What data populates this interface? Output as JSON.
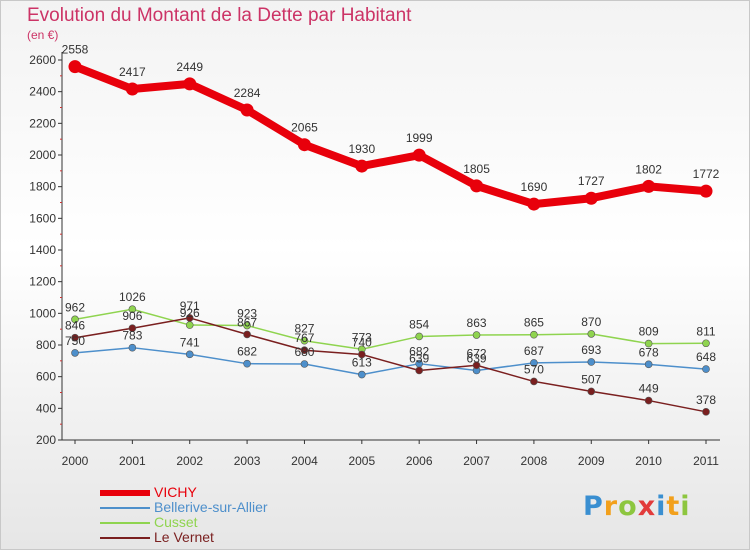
{
  "title": "Evolution du Montant de la Dette par Habitant",
  "unit": "(en €)",
  "logo": {
    "letters": [
      {
        "ch": "P",
        "color": "#3a8fd1"
      },
      {
        "ch": "r",
        "color": "#f2a01c"
      },
      {
        "ch": "o",
        "color": "#8dc63f"
      },
      {
        "ch": "x",
        "color": "#e23b3b"
      },
      {
        "ch": "i",
        "color": "#3a8fd1"
      },
      {
        "ch": "t",
        "color": "#f2a01c"
      },
      {
        "ch": "i",
        "color": "#8dc63f"
      }
    ]
  },
  "chart_data": {
    "type": "line",
    "title": "Evolution du Montant de la Dette par Habitant",
    "ylabel": "(en €)",
    "xlabel": "",
    "x": [
      "2000",
      "2001",
      "2002",
      "2003",
      "2004",
      "2005",
      "2006",
      "2007",
      "2008",
      "2009",
      "2010",
      "2011"
    ],
    "ylim": [
      200,
      2600
    ],
    "yticks": [
      200,
      400,
      600,
      800,
      1000,
      1200,
      1400,
      1600,
      1800,
      2000,
      2200,
      2400,
      2600
    ],
    "grid": false,
    "legend_position": "bottom-left",
    "series": [
      {
        "name": "VICHY",
        "color": "#e8000b",
        "values": [
          2558,
          2417,
          2449,
          2284,
          2065,
          1930,
          1999,
          1805,
          1690,
          1727,
          1802,
          1772
        ],
        "labels": [
          "2558",
          "2417",
          "2449",
          "2284",
          "2065",
          "1930",
          "1999",
          "1805",
          "1690",
          "1727",
          "1802",
          "1772"
        ]
      },
      {
        "name": "Bellerive-sur-Allier",
        "color": "#4d8fcb",
        "values": [
          750,
          783,
          741,
          682,
          680,
          613,
          682,
          639,
          687,
          693,
          678,
          648
        ],
        "labels": [
          "750",
          "783",
          "741",
          "682",
          "680",
          "613",
          "682",
          "639",
          "687",
          "693",
          "678",
          "648"
        ]
      },
      {
        "name": "Cusset",
        "color": "#8fd44f",
        "values": [
          962,
          1026,
          926,
          923,
          827,
          773,
          854,
          863,
          865,
          870,
          809,
          811
        ],
        "labels": [
          "962",
          "1026",
          "926",
          "923",
          "827",
          "773",
          "854",
          "863",
          "865",
          "870",
          "809",
          "811"
        ]
      },
      {
        "name": "Le Vernet",
        "color": "#7a1f1f",
        "values": [
          846,
          906,
          971,
          867,
          767,
          740,
          639,
          672,
          570,
          507,
          449,
          378
        ],
        "labels": [
          "846",
          "906",
          "971",
          "867",
          "767",
          "740",
          "639",
          "672",
          "570",
          "507",
          "449",
          "378"
        ]
      }
    ]
  }
}
